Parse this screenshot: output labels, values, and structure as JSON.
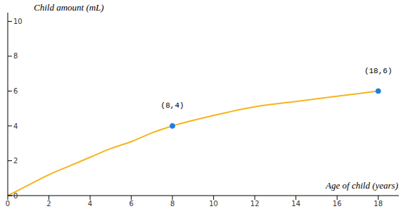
{
  "chart_data": {
    "type": "line",
    "x_label": "Age of child (years)",
    "y_label": "Child amount (mL)",
    "x": [
      0,
      1,
      2,
      3,
      4,
      5,
      6,
      7,
      8,
      10,
      12,
      14,
      16,
      18
    ],
    "values": [
      0,
      0.6,
      1.2,
      1.7,
      2.2,
      2.7,
      3.1,
      3.6,
      4,
      4.6,
      5.1,
      5.4,
      5.7,
      6
    ],
    "color": "#f5b51c",
    "xlim": [
      0,
      19
    ],
    "xticks": [
      0,
      2,
      4,
      6,
      8,
      10,
      12,
      14,
      16,
      18
    ],
    "ylim": [
      0,
      10.5
    ],
    "yticks": [
      0,
      2,
      4,
      6,
      8,
      10
    ],
    "grid": false,
    "annotations": [
      {
        "x": 8,
        "y": 4,
        "label": "(8,4)",
        "color": "#1f7fe0"
      },
      {
        "x": 18,
        "y": 6,
        "label": "(18,6)",
        "color": "#1f7fe0"
      }
    ]
  }
}
